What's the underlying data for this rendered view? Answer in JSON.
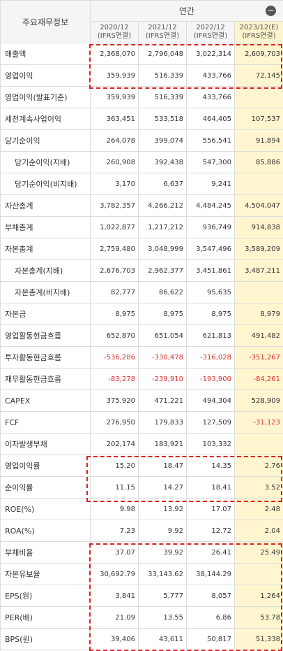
{
  "header": {
    "label": "주요재무정보",
    "period_group": "연간",
    "years": [
      {
        "year": "2020/12",
        "basis": "(IFRS연결)"
      },
      {
        "year": "2021/12",
        "basis": "(IFRS연결)"
      },
      {
        "year": "2022/12",
        "basis": "(IFRS연결)"
      },
      {
        "year": "2023/12(E)",
        "basis": "(IFRS연결)"
      }
    ]
  },
  "rows": [
    {
      "label": "매출액",
      "sub": false,
      "values": [
        "2,368,070",
        "2,796,048",
        "3,022,314",
        "2,609,703"
      ]
    },
    {
      "label": "영업이익",
      "sub": false,
      "values": [
        "359,939",
        "516,339",
        "433,766",
        "72,145"
      ]
    },
    {
      "label": "영업이익(발표기준)",
      "sub": false,
      "values": [
        "359,939",
        "516,339",
        "433,766",
        ""
      ]
    },
    {
      "label": "세전계속사업이익",
      "sub": false,
      "values": [
        "363,451",
        "533,518",
        "464,405",
        "107,537"
      ]
    },
    {
      "label": "당기순이익",
      "sub": false,
      "values": [
        "264,078",
        "399,074",
        "556,541",
        "91,894"
      ]
    },
    {
      "label": "당기순이익(지배)",
      "sub": true,
      "values": [
        "260,908",
        "392,438",
        "547,300",
        "85,886"
      ]
    },
    {
      "label": "당기순이익(비지배)",
      "sub": true,
      "values": [
        "3,170",
        "6,637",
        "9,241",
        ""
      ]
    },
    {
      "label": "자산총계",
      "sub": false,
      "values": [
        "3,782,357",
        "4,266,212",
        "4,484,245",
        "4,504,047"
      ]
    },
    {
      "label": "부채총계",
      "sub": false,
      "values": [
        "1,022,877",
        "1,217,212",
        "936,749",
        "914,838"
      ]
    },
    {
      "label": "자본총계",
      "sub": false,
      "values": [
        "2,759,480",
        "3,048,999",
        "3,547,496",
        "3,589,209"
      ]
    },
    {
      "label": "자본총계(지배)",
      "sub": true,
      "values": [
        "2,676,703",
        "2,962,377",
        "3,451,861",
        "3,487,211"
      ]
    },
    {
      "label": "자본총계(비지배)",
      "sub": true,
      "values": [
        "82,777",
        "86,622",
        "95,635",
        ""
      ]
    },
    {
      "label": "자본금",
      "sub": false,
      "values": [
        "8,975",
        "8,975",
        "8,975",
        "8,979"
      ]
    },
    {
      "label": "영업활동현금흐름",
      "sub": false,
      "values": [
        "652,870",
        "651,054",
        "621,813",
        "491,482"
      ]
    },
    {
      "label": "투자활동현금흐름",
      "sub": false,
      "values": [
        "-536,286",
        "-330,478",
        "-316,028",
        "-351,267"
      ]
    },
    {
      "label": "재무활동현금흐름",
      "sub": false,
      "values": [
        "-83,278",
        "-239,910",
        "-193,900",
        "-84,261"
      ]
    },
    {
      "label": "CAPEX",
      "sub": false,
      "values": [
        "375,920",
        "471,221",
        "494,304",
        "528,909"
      ]
    },
    {
      "label": "FCF",
      "sub": false,
      "values": [
        "276,950",
        "179,833",
        "127,509",
        "-31,123"
      ]
    },
    {
      "label": "이자발생부채",
      "sub": false,
      "values": [
        "202,174",
        "183,921",
        "103,332",
        ""
      ]
    },
    {
      "label": "영업이익률",
      "sub": false,
      "values": [
        "15.20",
        "18.47",
        "14.35",
        "2.76"
      ]
    },
    {
      "label": "순이익률",
      "sub": false,
      "values": [
        "11.15",
        "14.27",
        "18.41",
        "3.52"
      ]
    },
    {
      "label": "ROE(%)",
      "sub": false,
      "values": [
        "9.98",
        "13.92",
        "17.07",
        "2.48"
      ]
    },
    {
      "label": "ROA(%)",
      "sub": false,
      "values": [
        "7.23",
        "9.92",
        "12.72",
        "2.04"
      ]
    },
    {
      "label": "부채비율",
      "sub": false,
      "values": [
        "37.07",
        "39.92",
        "26.41",
        "25.49"
      ]
    },
    {
      "label": "자본유보율",
      "sub": false,
      "values": [
        "30,692.79",
        "33,143.62",
        "38,144.29",
        ""
      ]
    },
    {
      "label": "EPS(원)",
      "sub": false,
      "values": [
        "3,841",
        "5,777",
        "8,057",
        "1,264"
      ]
    },
    {
      "label": "PER(배)",
      "sub": false,
      "values": [
        "21.09",
        "13.55",
        "6.86",
        "53.78"
      ]
    },
    {
      "label": "BPS(원)",
      "sub": false,
      "values": [
        "39,406",
        "43,611",
        "50,817",
        "51,338"
      ]
    }
  ],
  "colors": {
    "negative": "#d9302c",
    "estimate_bg": "#fff6d0",
    "highlight_box": "#e02020"
  }
}
